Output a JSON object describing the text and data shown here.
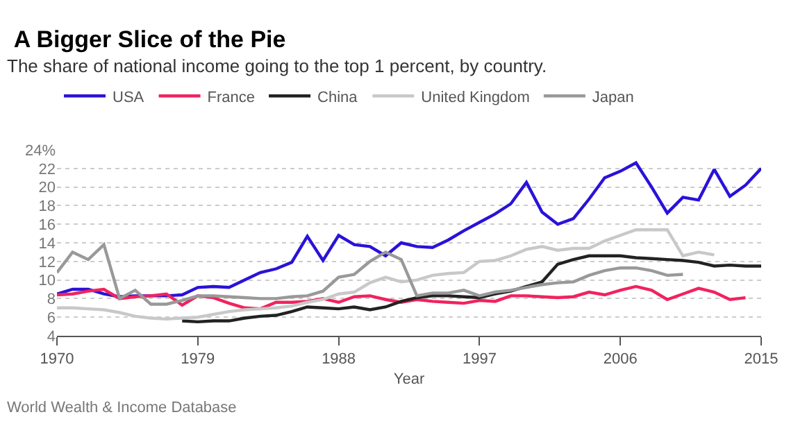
{
  "chart_data": {
    "type": "line",
    "title": "A Bigger Slice of the Pie",
    "subtitle": "The share of national income going to the top 1 percent, by country.",
    "xlabel": "Year",
    "annotations": [
      "World Wealth & Income Database"
    ],
    "xlim": [
      1970,
      2015
    ],
    "xticks": [
      1970,
      1979,
      1988,
      1997,
      2006,
      2015
    ],
    "ylim": [
      4,
      24
    ],
    "yticks": [
      4,
      6,
      8,
      10,
      12,
      14,
      16,
      18,
      20,
      22,
      {
        "value": 24,
        "label": "24%"
      }
    ],
    "grid": "y",
    "legend": "top left",
    "marker": "none",
    "line_style": "solid",
    "series": [
      {
        "name": "USA",
        "color": "#2a12d8",
        "x": [
          1970,
          1971,
          1972,
          1973,
          1974,
          1975,
          1976,
          1977,
          1978,
          1979,
          1980,
          1981,
          1982,
          1983,
          1984,
          1985,
          1986,
          1987,
          1988,
          1989,
          1990,
          1991,
          1992,
          1993,
          1994,
          1995,
          1996,
          1997,
          1998,
          1999,
          2000,
          2001,
          2002,
          2003,
          2004,
          2005,
          2006,
          2007,
          2008,
          2009,
          2010,
          2011,
          2012,
          2013,
          2014,
          2015
        ],
        "values": [
          8.5,
          9.0,
          9.0,
          8.5,
          8.2,
          8.3,
          8.3,
          8.3,
          8.4,
          9.2,
          9.3,
          9.2,
          10.0,
          10.8,
          11.2,
          11.9,
          14.7,
          12.1,
          14.8,
          13.8,
          13.6,
          12.6,
          14.0,
          13.6,
          13.5,
          14.3,
          15.3,
          16.2,
          17.1,
          18.2,
          20.5,
          17.3,
          16.0,
          16.6,
          18.7,
          21.0,
          21.7,
          22.6,
          20.0,
          17.2,
          18.9,
          18.6,
          21.9,
          19.0,
          20.2,
          22.0
        ]
      },
      {
        "name": "France",
        "color": "#f2225e",
        "x": [
          1970,
          1971,
          1972,
          1973,
          1974,
          1975,
          1976,
          1977,
          1978,
          1979,
          1980,
          1981,
          1982,
          1983,
          1984,
          1985,
          1986,
          1987,
          1988,
          1989,
          1990,
          1991,
          1992,
          1993,
          1994,
          1995,
          1996,
          1997,
          1998,
          1999,
          2000,
          2001,
          2002,
          2003,
          2004,
          2005,
          2006,
          2007,
          2008,
          2009,
          2010,
          2011,
          2012,
          2013,
          2014
        ],
        "values": [
          8.4,
          8.5,
          8.8,
          9.0,
          8.0,
          8.2,
          8.3,
          8.5,
          7.3,
          8.3,
          8.1,
          7.5,
          7.0,
          6.9,
          7.6,
          7.6,
          7.7,
          8.0,
          7.6,
          8.2,
          8.3,
          7.9,
          7.6,
          7.9,
          7.7,
          7.6,
          7.5,
          7.8,
          7.7,
          8.3,
          8.3,
          8.2,
          8.1,
          8.2,
          8.7,
          8.4,
          8.9,
          9.3,
          8.9,
          7.9,
          8.5,
          9.1,
          8.7,
          7.9,
          8.1
        ]
      },
      {
        "name": "China",
        "color": "#222222",
        "x": [
          1978,
          1979,
          1980,
          1981,
          1982,
          1983,
          1984,
          1985,
          1986,
          1987,
          1988,
          1989,
          1990,
          1991,
          1992,
          1993,
          1994,
          1995,
          1996,
          1997,
          1998,
          1999,
          2000,
          2001,
          2002,
          2003,
          2004,
          2005,
          2006,
          2007,
          2008,
          2009,
          2010,
          2011,
          2012,
          2013,
          2014,
          2015
        ],
        "values": [
          5.6,
          5.5,
          5.6,
          5.6,
          5.9,
          6.1,
          6.2,
          6.6,
          7.1,
          7.0,
          6.9,
          7.1,
          6.8,
          7.1,
          7.7,
          8.1,
          8.3,
          8.3,
          8.2,
          8.1,
          8.5,
          8.8,
          9.3,
          9.8,
          11.7,
          12.2,
          12.6,
          12.6,
          12.6,
          12.4,
          12.3,
          12.2,
          12.1,
          11.9,
          11.5,
          11.6,
          11.5,
          11.5
        ]
      },
      {
        "name": "United Kingdom",
        "color": "#c8c8c8",
        "x": [
          1970,
          1971,
          1972,
          1973,
          1974,
          1975,
          1976,
          1977,
          1978,
          1979,
          1980,
          1981,
          1982,
          1983,
          1984,
          1985,
          1986,
          1987,
          1988,
          1989,
          1990,
          1991,
          1992,
          1993,
          1994,
          1995,
          1996,
          1997,
          1998,
          1999,
          2000,
          2001,
          2002,
          2003,
          2004,
          2005,
          2006,
          2007,
          2008,
          2009,
          2010,
          2011,
          2012
        ],
        "values": [
          7.0,
          7.0,
          6.9,
          6.8,
          6.5,
          6.1,
          5.9,
          5.8,
          5.9,
          6.0,
          6.3,
          6.6,
          6.8,
          6.9,
          7.0,
          7.2,
          7.6,
          7.9,
          8.5,
          8.7,
          9.7,
          10.3,
          9.8,
          10.0,
          10.5,
          10.7,
          10.8,
          12.0,
          12.1,
          12.6,
          13.3,
          13.6,
          13.2,
          13.4,
          13.4,
          14.2,
          14.8,
          15.4,
          15.4,
          15.4,
          12.6,
          13.0,
          12.7
        ]
      },
      {
        "name": "Japan",
        "color": "#999999",
        "x": [
          1970,
          1971,
          1972,
          1973,
          1974,
          1975,
          1976,
          1977,
          1978,
          1979,
          1980,
          1981,
          1982,
          1983,
          1984,
          1985,
          1986,
          1987,
          1988,
          1989,
          1990,
          1991,
          1992,
          1993,
          1994,
          1995,
          1996,
          1997,
          1998,
          1999,
          2000,
          2001,
          2002,
          2003,
          2004,
          2005,
          2006,
          2007,
          2008,
          2009,
          2010
        ],
        "values": [
          10.8,
          13.0,
          12.2,
          13.8,
          8.0,
          8.9,
          7.4,
          7.4,
          7.8,
          8.3,
          8.3,
          8.2,
          8.1,
          8.0,
          8.0,
          8.2,
          8.3,
          8.8,
          10.3,
          10.6,
          12.0,
          13.0,
          12.2,
          8.3,
          8.6,
          8.6,
          8.9,
          8.3,
          8.7,
          8.9,
          9.2,
          9.5,
          9.7,
          9.8,
          10.5,
          11.0,
          11.3,
          11.3,
          11.0,
          10.5,
          10.6
        ]
      }
    ]
  }
}
